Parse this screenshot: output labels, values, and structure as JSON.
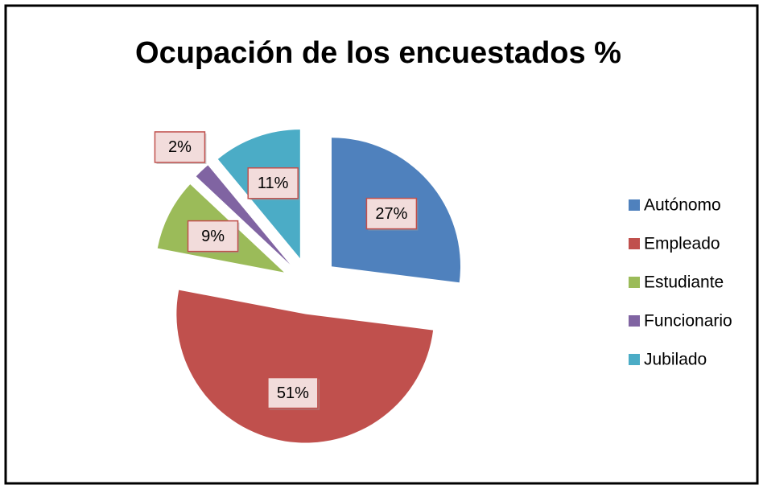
{
  "chart_data": {
    "type": "pie",
    "title": "Ocupación de los encuestados %",
    "categories": [
      "Autónomo",
      "Empleado",
      "Estudiante",
      "Funcionario",
      "Jubilado"
    ],
    "values": [
      27,
      51,
      9,
      2,
      11
    ],
    "value_labels": [
      "27%",
      "51%",
      "9%",
      "2%",
      "11%"
    ],
    "colors": [
      "#4f81bd",
      "#c0504d",
      "#9bbb59",
      "#8064a2",
      "#4bacc6"
    ],
    "exploded": true,
    "legend": "right"
  }
}
